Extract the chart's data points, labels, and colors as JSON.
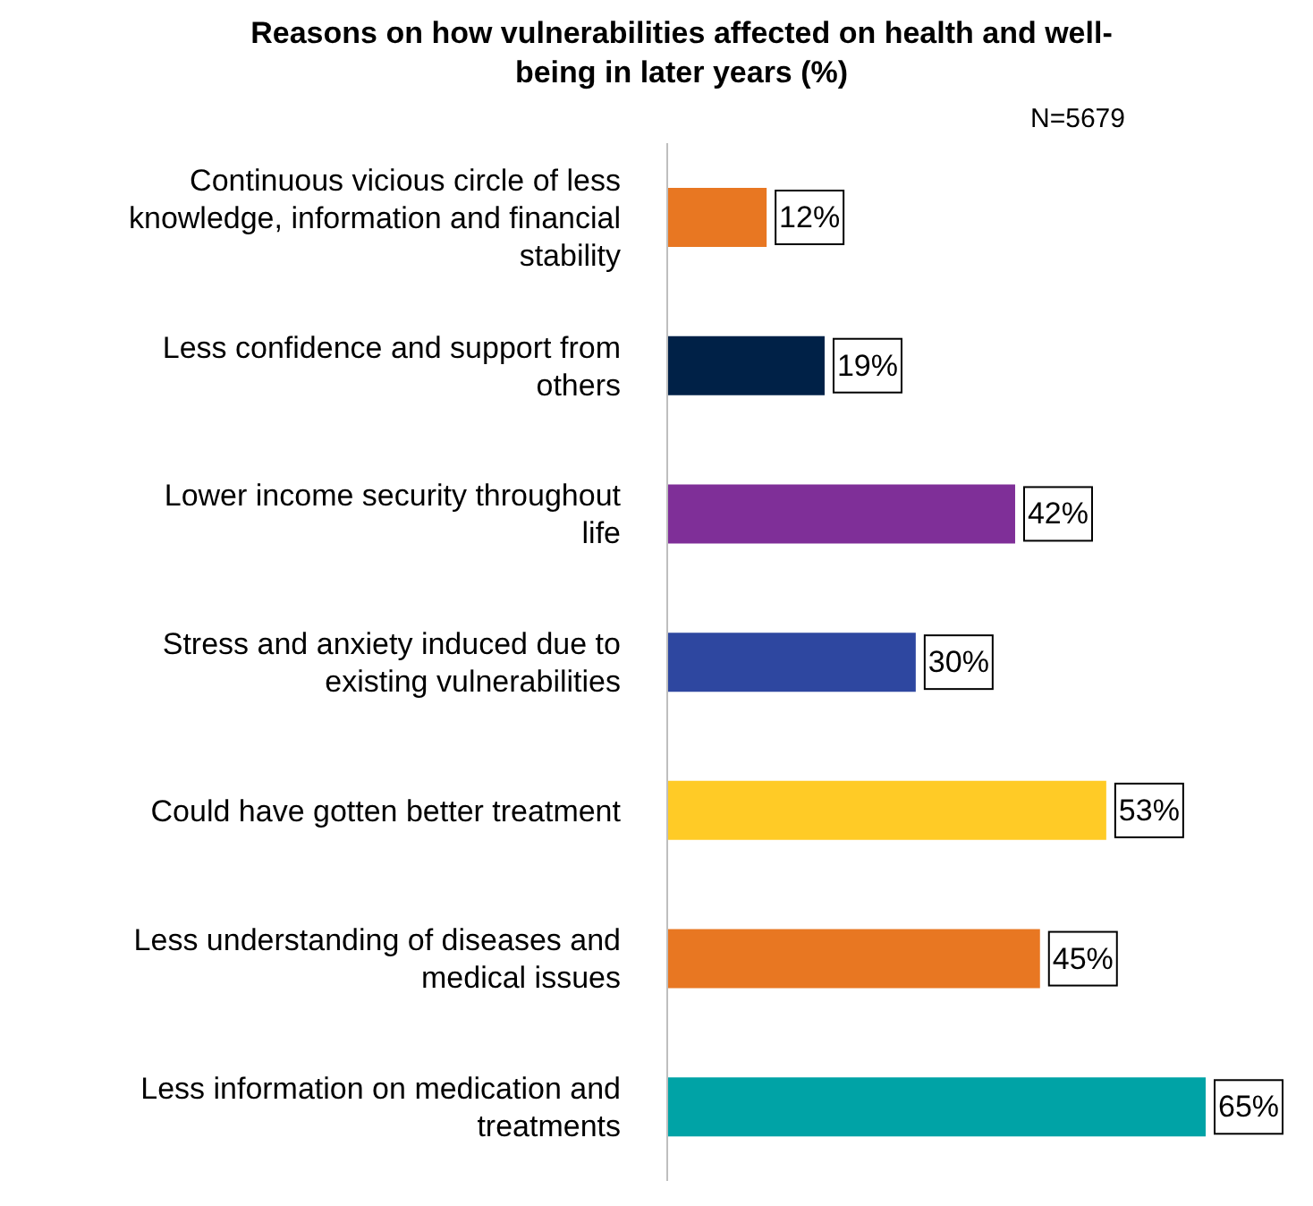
{
  "chart_data": {
    "type": "bar",
    "orientation": "horizontal",
    "title": "Reasons on how vulnerabilities affected on health and well-being in later years (%)",
    "annotations": [
      "N=5679"
    ],
    "categories": [
      "Continuous vicious circle of less knowledge, information and financial stability",
      "Less confidence and support from others",
      "Lower income security throughout life",
      "Stress and anxiety induced due to existing vulnerabilities",
      "Could have gotten better treatment",
      "Less understanding of diseases and medical issues",
      "Less information on medication and treatments"
    ],
    "values": [
      12,
      19,
      42,
      30,
      53,
      45,
      65
    ],
    "colors": [
      "#e87722",
      "#002147",
      "#7f2f98",
      "#2e47a0",
      "#ffcb26",
      "#e87722",
      "#00a3a6"
    ],
    "value_labels": [
      "12%",
      "19%",
      "42%",
      "30%",
      "53%",
      "45%",
      "65%"
    ],
    "tick_labels": "y"
  }
}
